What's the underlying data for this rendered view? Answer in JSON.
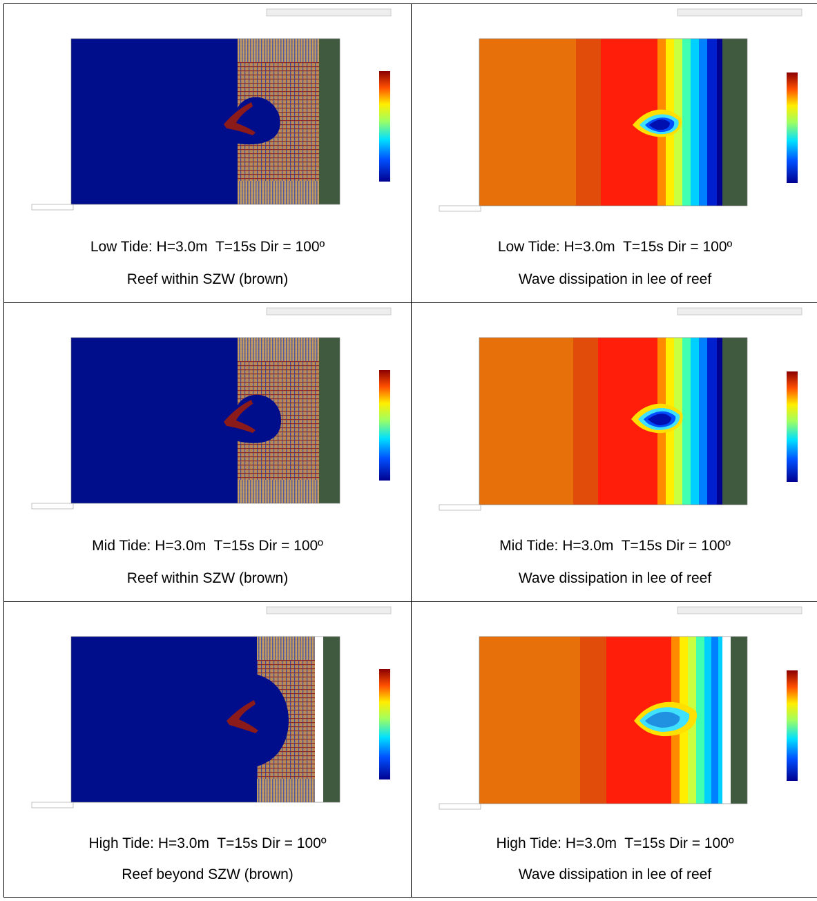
{
  "colors": {
    "deep_blue": "#000e8c",
    "reef_brown": "#8b1a1a",
    "land_green": "#3f5a3f",
    "szw_tan": "#b58a5a",
    "orange": "#e8700a",
    "dark_orange": "#e24c0a",
    "red": "#ff1e0a"
  },
  "rows": [
    {
      "left": {
        "line1": "Low Tide: H=3.0m  T=15s Dir = 100º",
        "line2": "Reef within SZW (brown)"
      },
      "right": {
        "line1": "Low Tide: H=3.0m  T=15s Dir = 100º",
        "line2": "Wave dissipation in lee of reef"
      }
    },
    {
      "left": {
        "line1": "Mid Tide: H=3.0m  T=15s Dir = 100º",
        "line2": "Reef within SZW (brown)"
      },
      "right": {
        "line1": "Mid Tide: H=3.0m  T=15s Dir = 100º",
        "line2": "Wave dissipation in lee of reef"
      }
    },
    {
      "left": {
        "line1": "High Tide: H=3.0m  T=15s Dir = 100º",
        "line2": "Reef beyond SZW (brown)"
      },
      "right": {
        "line1": "High Tide: H=3.0m  T=15s Dir = 100º",
        "line2": "Wave dissipation in lee of reef"
      }
    }
  ]
}
